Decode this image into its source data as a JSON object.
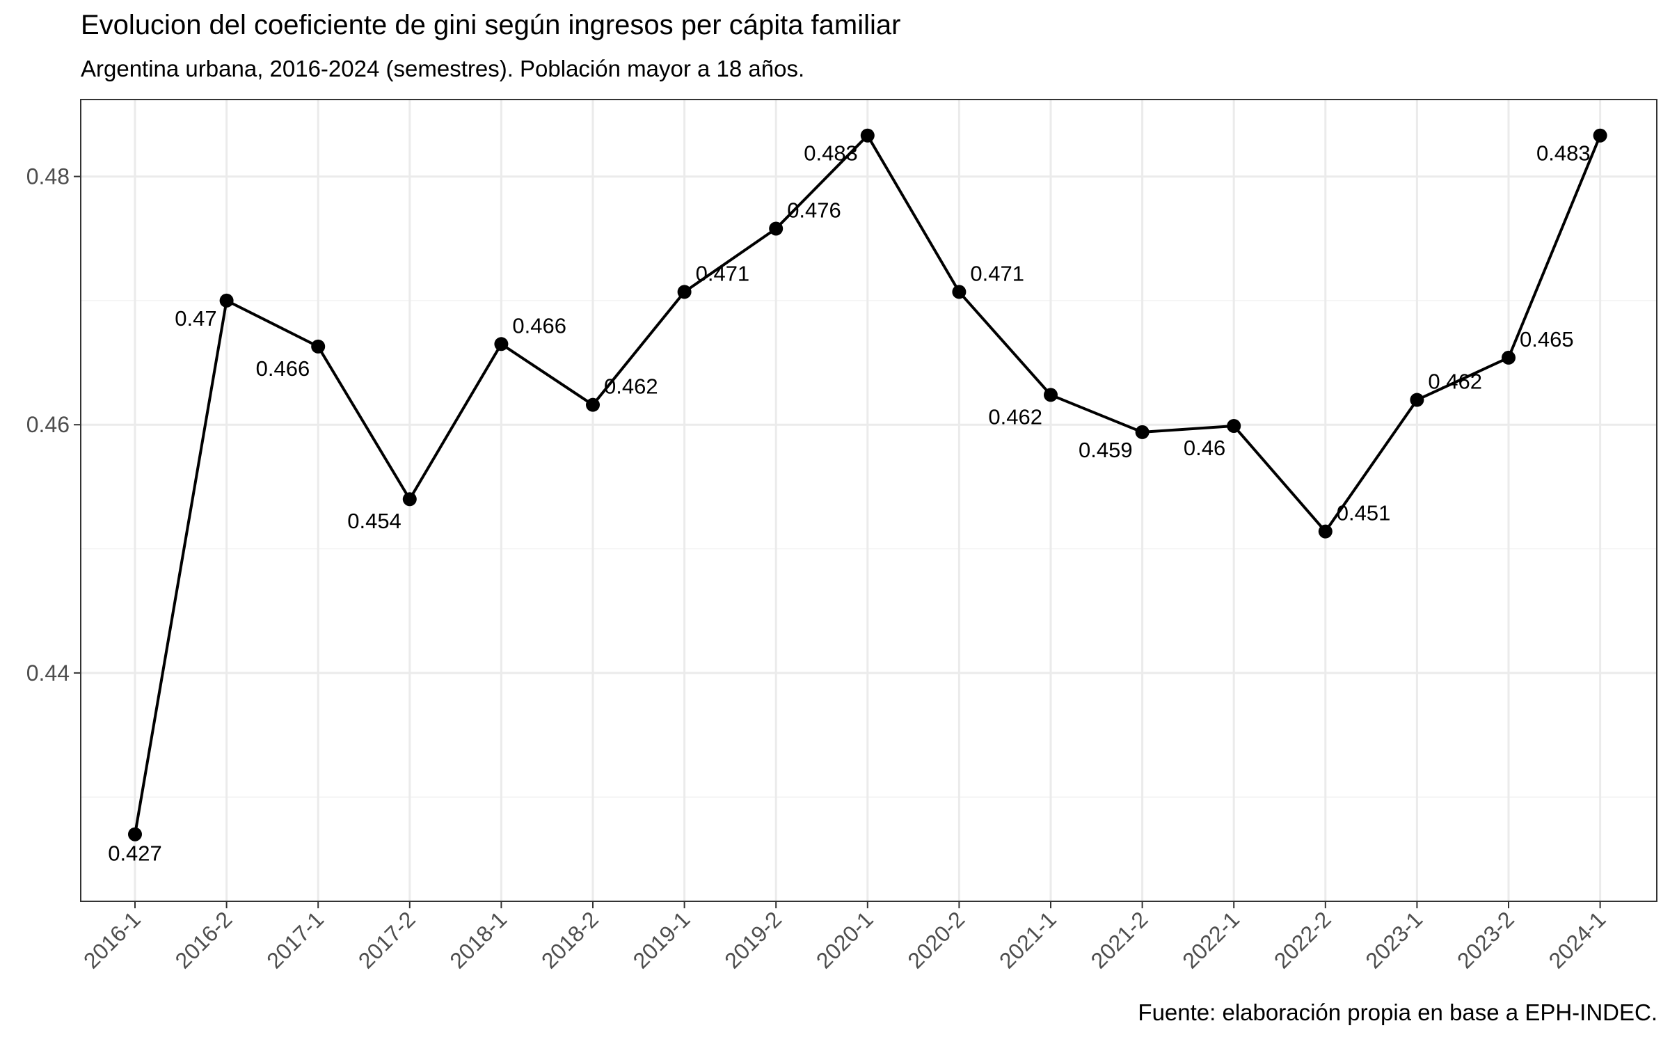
{
  "chart_data": {
    "type": "line",
    "title": "Evolucion del coeficiente de gini según ingresos per cápita familiar",
    "subtitle": "Argentina urbana, 2016-2024 (semestres). Población mayor a 18 años.",
    "caption": "Fuente: elaboración propia en base a EPH-INDEC.",
    "xlabel": "",
    "ylabel": "",
    "categories": [
      "2016-1",
      "2016-2",
      "2017-1",
      "2017-2",
      "2018-1",
      "2018-2",
      "2019-1",
      "2019-2",
      "2020-1",
      "2020-2",
      "2021-1",
      "2021-2",
      "2022-1",
      "2022-2",
      "2023-1",
      "2023-2",
      "2024-1"
    ],
    "values": [
      0.427,
      0.47,
      0.4663,
      0.454,
      0.4665,
      0.4616,
      0.4707,
      0.4758,
      0.4833,
      0.4707,
      0.4624,
      0.4594,
      0.4599,
      0.4514,
      0.462,
      0.4654,
      0.4833
    ],
    "data_labels": [
      "0.427",
      "0.47",
      "0.466",
      "0.454",
      "0.466",
      "0.462",
      "0.471",
      "0.476",
      "0.483",
      "0.471",
      "0.462",
      "0.459",
      "0.46",
      "0.451",
      "0.462",
      "0.465",
      "0.483"
    ],
    "label_positions": [
      "below",
      "left",
      "below-left",
      "below-left",
      "above-right",
      "right",
      "right",
      "right",
      "left",
      "above-right",
      "below-left",
      "left",
      "below-left",
      "right",
      "right",
      "right",
      "left"
    ],
    "ylim": [
      0.4216,
      0.4862
    ],
    "yticks": [
      0.44,
      0.46,
      0.48
    ],
    "ytick_labels": [
      "0.44",
      "0.46",
      "0.48"
    ],
    "grid": true,
    "line_color": "#000000",
    "point_color": "#000000"
  }
}
